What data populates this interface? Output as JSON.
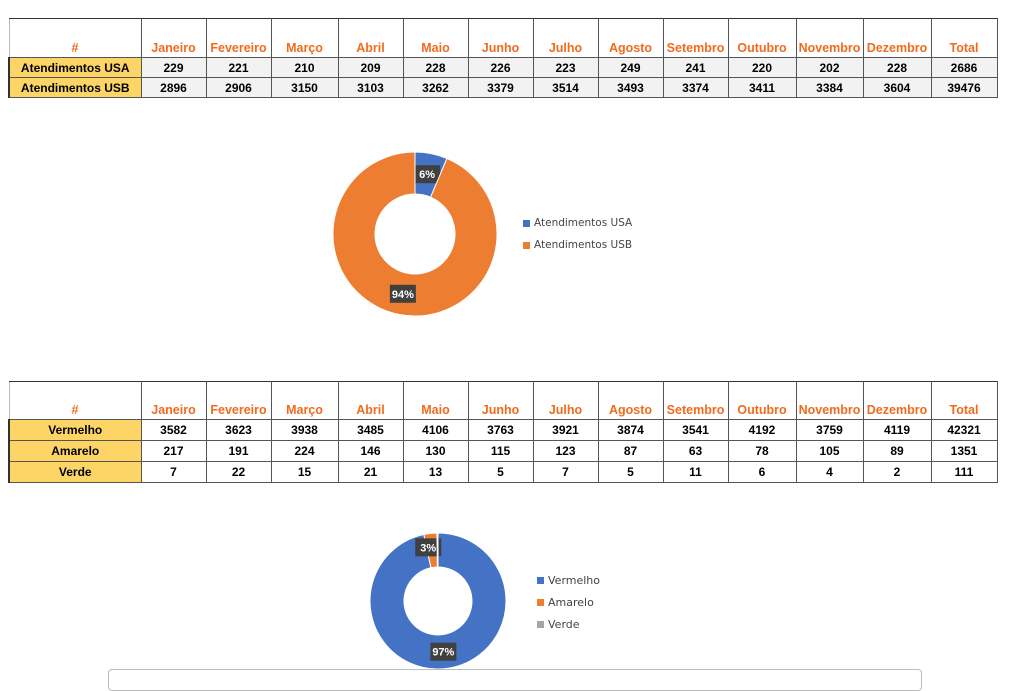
{
  "months": [
    "Janeiro",
    "Fevereiro",
    "Março",
    "Abril",
    "Maio",
    "Junho",
    "Julho",
    "Agosto",
    "Setembro",
    "Outubro",
    "Novembro",
    "Dezembro",
    "Total"
  ],
  "table1": {
    "corner": "#",
    "rows": [
      {
        "label": "Atendimentos USA",
        "values": [
          "229",
          "221",
          "210",
          "209",
          "228",
          "226",
          "223",
          "249",
          "241",
          "220",
          "202",
          "228",
          "2686"
        ]
      },
      {
        "label": "Atendimentos USB",
        "values": [
          "2896",
          "2906",
          "3150",
          "3103",
          "3262",
          "3379",
          "3514",
          "3493",
          "3374",
          "3411",
          "3384",
          "3604",
          "39476"
        ]
      }
    ]
  },
  "table2": {
    "corner": "#",
    "rows": [
      {
        "label": "Vermelho",
        "values": [
          "3582",
          "3623",
          "3938",
          "3485",
          "4106",
          "3763",
          "3921",
          "3874",
          "3541",
          "4192",
          "3759",
          "4119",
          "42321"
        ]
      },
      {
        "label": "Amarelo",
        "values": [
          "217",
          "191",
          "224",
          "146",
          "130",
          "115",
          "123",
          "87",
          "63",
          "78",
          "105",
          "89",
          "1351"
        ]
      },
      {
        "label": "Verde",
        "values": [
          "7",
          "22",
          "15",
          "21",
          "13",
          "5",
          "7",
          "5",
          "11",
          "6",
          "4",
          "2",
          "111"
        ]
      }
    ]
  },
  "chart_data": [
    {
      "type": "pie",
      "donut": true,
      "labels": [
        "Atendimentos USA",
        "Atendimentos USB"
      ],
      "values": [
        2686,
        39476
      ],
      "data_labels": [
        "6%",
        "94%"
      ],
      "colors": [
        "#4472c4",
        "#ed7d31"
      ],
      "legend": "right"
    },
    {
      "type": "pie",
      "donut": true,
      "labels": [
        "Vermelho",
        "Amarelo",
        "Verde"
      ],
      "values": [
        42321,
        1351,
        111
      ],
      "data_labels": [
        "97%",
        "3%",
        "0%"
      ],
      "colors": [
        "#4472c4",
        "#ed7d31",
        "#a5a5a5"
      ],
      "legend": "right"
    }
  ]
}
